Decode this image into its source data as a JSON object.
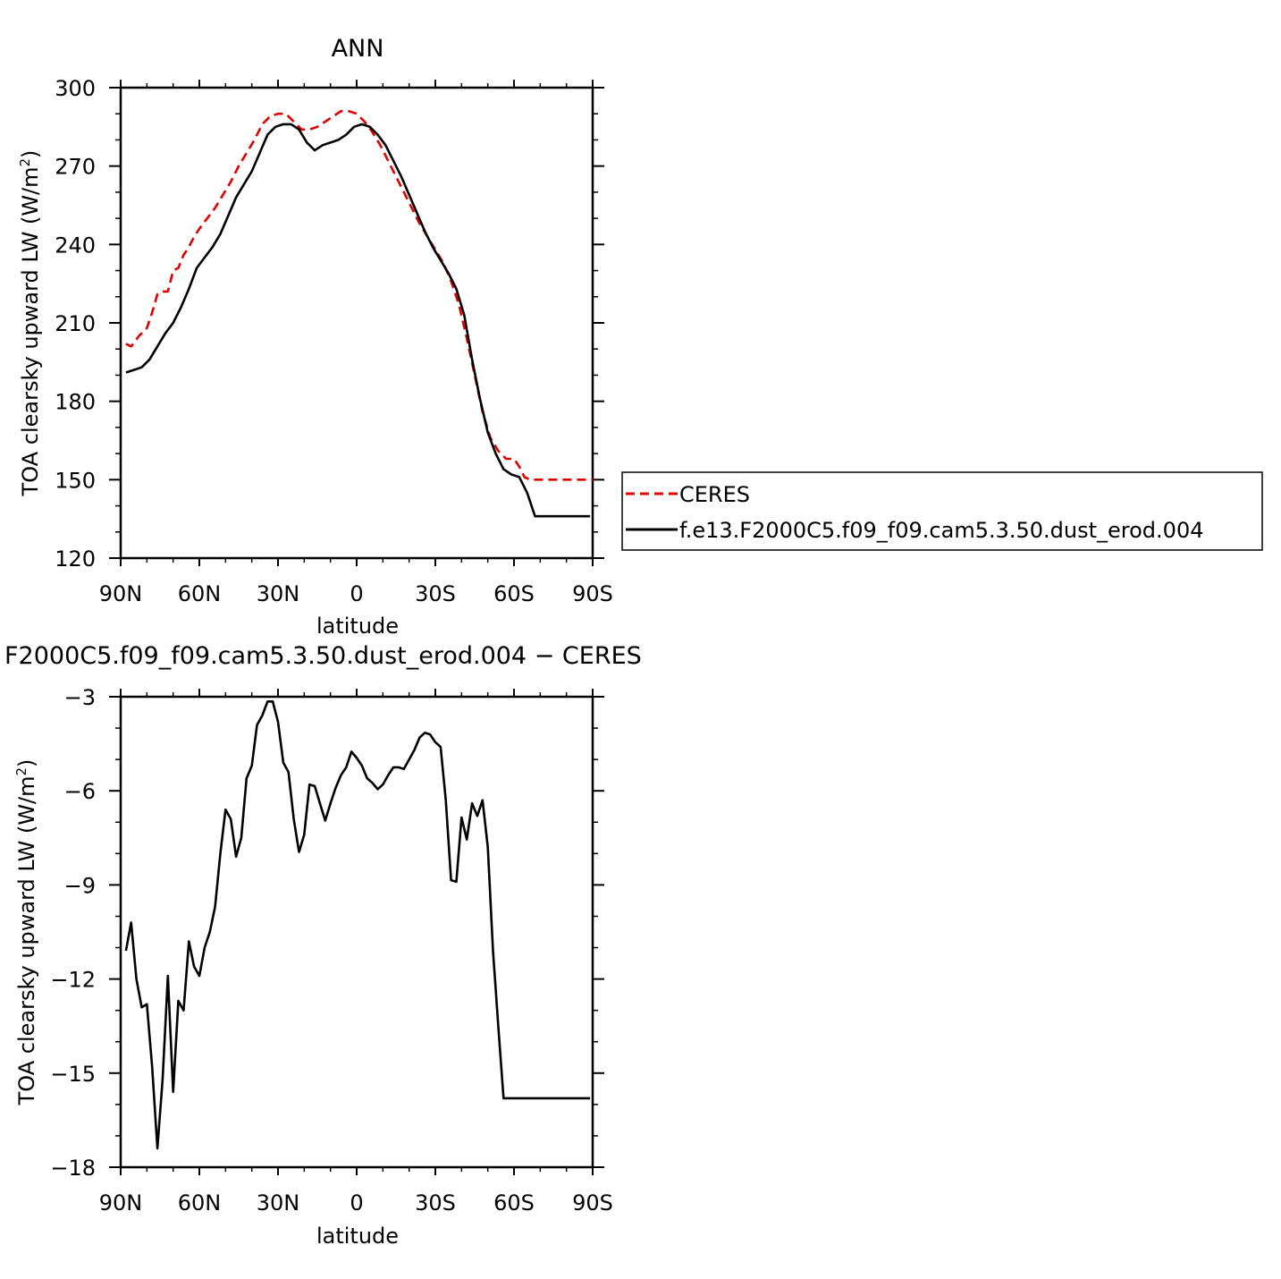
{
  "chart_data": [
    {
      "type": "line",
      "title": "ANN",
      "xlabel": "latitude",
      "ylabel_main": "TOA clearsky upward LW (W/m",
      "ylabel_sup": "2",
      "ylabel_close": ")",
      "xlim": [
        90,
        -90
      ],
      "ylim": [
        120,
        300
      ],
      "xticks": [
        90,
        60,
        30,
        0,
        -30,
        -60,
        -90
      ],
      "xtick_labels": [
        "90N",
        "60N",
        "30N",
        "0",
        "30S",
        "60S",
        "90S"
      ],
      "yticks": [
        120,
        150,
        180,
        210,
        240,
        270,
        300
      ],
      "ytick_labels": [
        "120",
        "150",
        "180",
        "210",
        "240",
        "270",
        "300"
      ],
      "legend_position": "right",
      "series": [
        {
          "name": "CERES",
          "color": "#e00000",
          "dash": "dashed",
          "x": [
            88,
            86,
            83,
            80,
            78,
            76,
            74,
            72,
            70,
            68,
            66,
            64,
            62,
            60,
            57,
            54,
            51,
            48,
            45,
            42,
            39,
            36,
            33,
            30,
            27,
            24,
            21,
            18,
            15,
            12,
            9,
            6,
            3,
            0,
            -3,
            -6,
            -9,
            -12,
            -15,
            -18,
            -21,
            -24,
            -27,
            -30,
            -33,
            -36,
            -39,
            -42,
            -45,
            -48,
            -51,
            -54,
            -57,
            -60,
            -62,
            -64,
            -66,
            -68,
            -70,
            -72,
            -74,
            -76,
            -78,
            -80,
            -82,
            -84,
            -86,
            -88,
            -90
          ],
          "y": [
            202,
            201,
            205,
            208,
            214,
            221,
            222,
            222,
            230,
            231,
            236,
            239,
            243,
            246,
            250,
            254,
            259,
            264,
            270,
            275,
            280,
            286,
            289,
            290,
            290,
            287,
            284,
            284,
            285,
            287,
            289,
            291,
            291,
            290,
            287,
            283,
            278,
            272,
            266,
            260,
            254,
            248,
            243,
            238,
            233,
            226,
            217,
            204,
            190,
            176,
            166,
            161,
            158,
            158,
            155,
            151,
            150,
            150,
            150,
            150,
            150,
            150,
            150,
            150,
            150,
            150,
            150,
            150,
            150
          ]
        },
        {
          "name": "f.e13.F2000C5.f09_f09.cam5.3.50.dust_erod.004",
          "color": "#000000",
          "dash": "solid",
          "x": [
            88,
            85,
            82,
            79,
            76,
            73,
            70,
            67,
            64,
            61,
            58,
            55,
            52,
            49,
            46,
            43,
            40,
            37,
            34,
            31,
            28,
            25,
            22,
            19,
            16,
            13,
            10,
            7,
            4,
            1,
            -2,
            -5,
            -8,
            -11,
            -14,
            -17,
            -20,
            -23,
            -26,
            -29,
            -32,
            -35,
            -38,
            -41,
            -44,
            -47,
            -50,
            -53,
            -56,
            -59,
            -62,
            -65,
            -68,
            -71,
            -74,
            -77,
            -80,
            -83,
            -86,
            -89
          ],
          "y": [
            191,
            192,
            193,
            196,
            201,
            206,
            210,
            216,
            223,
            231,
            235,
            239,
            244,
            251,
            258,
            263,
            268,
            275,
            282,
            285,
            286,
            286,
            284,
            279,
            276,
            278,
            279,
            280,
            282,
            285,
            286,
            285,
            282,
            278,
            272,
            266,
            259,
            252,
            245,
            239,
            234,
            229,
            223,
            213,
            196,
            181,
            168,
            160,
            154,
            152,
            151,
            145,
            136,
            136,
            136,
            136,
            136,
            136,
            136,
            136
          ]
        }
      ]
    },
    {
      "type": "line",
      "title": "F2000C5.f09_f09.cam5.3.50.dust_erod.004 − CERES",
      "xlabel": "latitude",
      "ylabel_main": "TOA clearsky upward LW (W/m",
      "ylabel_sup": "2",
      "ylabel_close": ")",
      "xlim": [
        90,
        -90
      ],
      "ylim": [
        -18,
        -3
      ],
      "xticks": [
        90,
        60,
        30,
        0,
        -30,
        -60,
        -90
      ],
      "xtick_labels": [
        "90N",
        "60N",
        "30N",
        "0",
        "30S",
        "60S",
        "90S"
      ],
      "yticks": [
        -18,
        -15,
        -12,
        -9,
        -6,
        -3
      ],
      "ytick_labels": [
        "−18",
        "−15",
        "−12",
        "−9",
        "−6",
        "−3"
      ],
      "series": [
        {
          "color": "#000000",
          "dash": "solid",
          "x": [
            88,
            86,
            84,
            82,
            80,
            78,
            76,
            74,
            72,
            70,
            68,
            66,
            64,
            62,
            60,
            58,
            56,
            54,
            52,
            50,
            48,
            46,
            44,
            42,
            40,
            38,
            36,
            34,
            32,
            30,
            28,
            26,
            24,
            22,
            20,
            18,
            16,
            14,
            12,
            10,
            8,
            6,
            4,
            2,
            0,
            -2,
            -4,
            -6,
            -8,
            -10,
            -12,
            -14,
            -16,
            -18,
            -20,
            -22,
            -24,
            -26,
            -28,
            -30,
            -32,
            -34,
            -36,
            -38,
            -40,
            -42,
            -44,
            -46,
            -48,
            -50,
            -52,
            -54,
            -56,
            -58,
            -60,
            -62,
            -64,
            -66,
            -68,
            -70,
            -72,
            -74,
            -76,
            -78,
            -80,
            -82,
            -84,
            -86,
            -88,
            -89
          ],
          "y": [
            -11.1,
            -10.2,
            -12.0,
            -12.9,
            -12.8,
            -14.8,
            -17.4,
            -15.2,
            -11.9,
            -15.6,
            -12.7,
            -13.0,
            -10.8,
            -11.6,
            -11.9,
            -11.0,
            -10.5,
            -9.7,
            -8.0,
            -6.6,
            -6.9,
            -8.1,
            -7.5,
            -5.6,
            -5.2,
            -3.9,
            -3.6,
            -3.15,
            -3.15,
            -3.8,
            -5.1,
            -5.4,
            -6.9,
            -7.95,
            -7.4,
            -5.8,
            -5.85,
            -6.4,
            -6.95,
            -6.4,
            -5.9,
            -5.5,
            -5.25,
            -4.75,
            -4.95,
            -5.2,
            -5.6,
            -5.75,
            -5.95,
            -5.8,
            -5.5,
            -5.25,
            -5.25,
            -5.3,
            -5.0,
            -4.7,
            -4.3,
            -4.15,
            -4.2,
            -4.45,
            -4.6,
            -6.3,
            -8.85,
            -8.9,
            -6.85,
            -7.55,
            -6.4,
            -6.8,
            -6.3,
            -7.8,
            -11.1,
            -13.5,
            -15.8,
            -15.8,
            -15.8,
            -15.8,
            -15.8,
            -15.8,
            -15.8,
            -15.8,
            -15.8,
            -15.8,
            -15.8,
            -15.8,
            -15.8,
            -15.8,
            -15.8,
            -15.8,
            -15.8,
            -15.8
          ]
        }
      ]
    }
  ]
}
